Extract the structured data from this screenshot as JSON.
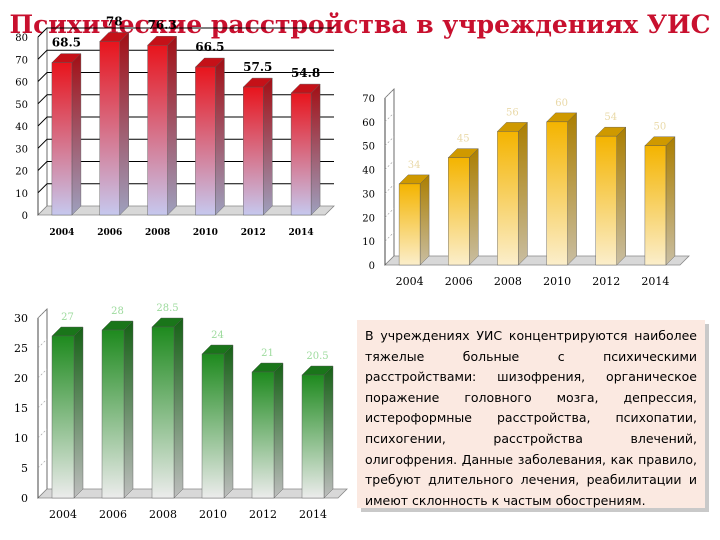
{
  "title": "Психические расстройства в учреждениях УИС",
  "note": "В учреждениях УИС концентрируются наиболее тяжелые больные с психическими расстройствами: шизофрения, органическое поражение головного мозга, депрессия, истероформные расстройства, психопатии, психогении, расстройства влечений, олигофрения. Данные заболевания, как правило, требуют длительного лечения, реабилитации и имеют склонность к частым обострениям.",
  "colors": {
    "title": "#c8102e",
    "red": "#e8141c",
    "gold": "#f4b400",
    "green": "#1e8a1e",
    "note_bg": "#fbe9e1"
  },
  "chart_data": [
    {
      "type": "bar",
      "categories": [
        "2004",
        "2006",
        "2008",
        "2010",
        "2012",
        "2014"
      ],
      "values": [
        68.5,
        78,
        76.3,
        66.5,
        57.5,
        54.8
      ],
      "value_labels": [
        "68.5",
        "78",
        "76.3",
        "66.5",
        "57.5",
        "54.8"
      ],
      "yticks": [
        "0",
        "10",
        "20",
        "30",
        "40",
        "50",
        "60",
        "70",
        "80"
      ],
      "ylim": [
        0,
        80
      ],
      "colors": [
        "#e8141c",
        "#c6c8ee"
      ],
      "grid": true
    },
    {
      "type": "bar",
      "categories": [
        "2004",
        "2006",
        "2008",
        "2010",
        "2012",
        "2014"
      ],
      "values": [
        34,
        45,
        56,
        60,
        54,
        50
      ],
      "value_labels": [
        "34",
        "45",
        "56",
        "60",
        "54",
        "50"
      ],
      "yticks": [
        "0",
        "10",
        "20",
        "30",
        "40",
        "50",
        "60",
        "70"
      ],
      "ylim": [
        0,
        70
      ],
      "colors": [
        "#f4b400",
        "#fbeecb"
      ],
      "grid": false
    },
    {
      "type": "bar",
      "categories": [
        "2004",
        "2006",
        "2008",
        "2010",
        "2012",
        "2014"
      ],
      "values": [
        27,
        28,
        28.5,
        24,
        21,
        20.5
      ],
      "value_labels": [
        "27",
        "28",
        "28.5",
        "24",
        "21",
        "20.5"
      ],
      "yticks": [
        "0",
        "5",
        "10",
        "15",
        "20",
        "25",
        "30"
      ],
      "ylim": [
        0,
        30
      ],
      "colors": [
        "#1e8a1e",
        "#ececec"
      ],
      "grid": false
    }
  ]
}
